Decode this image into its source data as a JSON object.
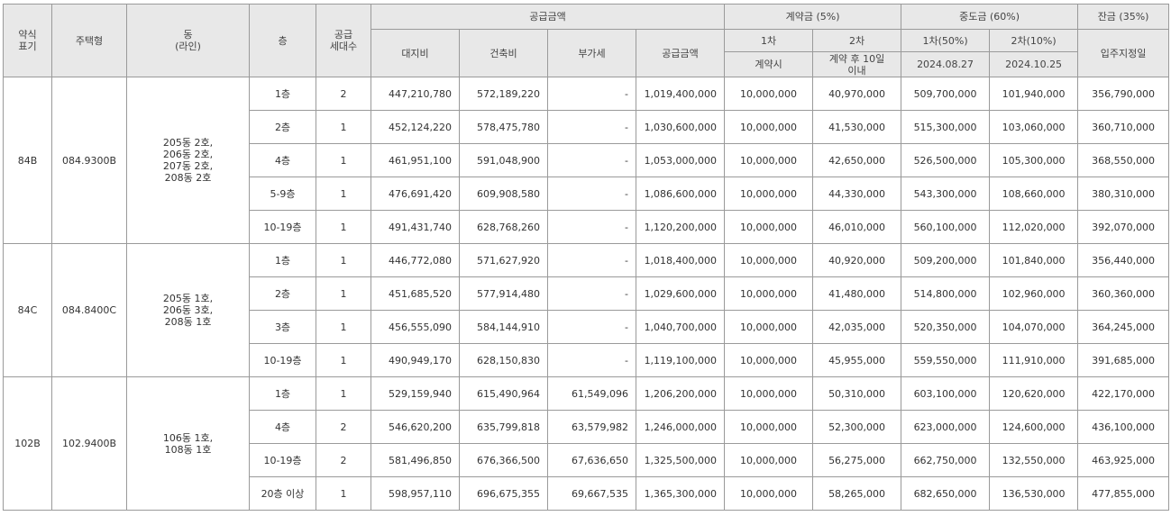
{
  "header": {
    "type_label": "약식\n표기",
    "house_type": "주택형",
    "dong": "동\n(라인)",
    "floor": "층",
    "units": "공급\n세대수",
    "supply_price": "공급금액",
    "land": "대지비",
    "building": "건축비",
    "vat": "부가세",
    "supply_total": "공급금액",
    "deposit": "계약금 (5%)",
    "deposit_1": "1차",
    "deposit_2": "2차",
    "deposit_1_when": "계약시",
    "deposit_2_when": "계약 후 10일\n이내",
    "middle": "중도금 (60%)",
    "middle_1": "1차(50%)",
    "middle_2": "2차(10%)",
    "middle_1_date": "2024.08.27",
    "middle_2_date": "2024.10.25",
    "balance": "잔금 (35%)",
    "balance_when": "입주지정일"
  },
  "groups": [
    {
      "code": "84B",
      "house_type": "084.9300B",
      "dong": "205동 2호,\n206동 2호,\n207동 2호,\n208동 2호",
      "rows": [
        {
          "floor": "1층",
          "units": "2",
          "land": "447,210,780",
          "building": "572,189,220",
          "vat": "-",
          "total": "1,019,400,000",
          "dep1": "10,000,000",
          "dep2": "40,970,000",
          "mid1": "509,700,000",
          "mid2": "101,940,000",
          "bal": "356,790,000"
        },
        {
          "floor": "2층",
          "units": "1",
          "land": "452,124,220",
          "building": "578,475,780",
          "vat": "-",
          "total": "1,030,600,000",
          "dep1": "10,000,000",
          "dep2": "41,530,000",
          "mid1": "515,300,000",
          "mid2": "103,060,000",
          "bal": "360,710,000"
        },
        {
          "floor": "4층",
          "units": "1",
          "land": "461,951,100",
          "building": "591,048,900",
          "vat": "-",
          "total": "1,053,000,000",
          "dep1": "10,000,000",
          "dep2": "42,650,000",
          "mid1": "526,500,000",
          "mid2": "105,300,000",
          "bal": "368,550,000"
        },
        {
          "floor": "5-9층",
          "units": "1",
          "land": "476,691,420",
          "building": "609,908,580",
          "vat": "-",
          "total": "1,086,600,000",
          "dep1": "10,000,000",
          "dep2": "44,330,000",
          "mid1": "543,300,000",
          "mid2": "108,660,000",
          "bal": "380,310,000"
        },
        {
          "floor": "10-19층",
          "units": "1",
          "land": "491,431,740",
          "building": "628,768,260",
          "vat": "-",
          "total": "1,120,200,000",
          "dep1": "10,000,000",
          "dep2": "46,010,000",
          "mid1": "560,100,000",
          "mid2": "112,020,000",
          "bal": "392,070,000"
        }
      ]
    },
    {
      "code": "84C",
      "house_type": "084.8400C",
      "dong": "205동 1호,\n206동 3호,\n208동 1호",
      "rows": [
        {
          "floor": "1층",
          "units": "1",
          "land": "446,772,080",
          "building": "571,627,920",
          "vat": "-",
          "total": "1,018,400,000",
          "dep1": "10,000,000",
          "dep2": "40,920,000",
          "mid1": "509,200,000",
          "mid2": "101,840,000",
          "bal": "356,440,000"
        },
        {
          "floor": "2층",
          "units": "1",
          "land": "451,685,520",
          "building": "577,914,480",
          "vat": "-",
          "total": "1,029,600,000",
          "dep1": "10,000,000",
          "dep2": "41,480,000",
          "mid1": "514,800,000",
          "mid2": "102,960,000",
          "bal": "360,360,000"
        },
        {
          "floor": "3층",
          "units": "1",
          "land": "456,555,090",
          "building": "584,144,910",
          "vat": "-",
          "total": "1,040,700,000",
          "dep1": "10,000,000",
          "dep2": "42,035,000",
          "mid1": "520,350,000",
          "mid2": "104,070,000",
          "bal": "364,245,000"
        },
        {
          "floor": "10-19층",
          "units": "1",
          "land": "490,949,170",
          "building": "628,150,830",
          "vat": "-",
          "total": "1,119,100,000",
          "dep1": "10,000,000",
          "dep2": "45,955,000",
          "mid1": "559,550,000",
          "mid2": "111,910,000",
          "bal": "391,685,000"
        }
      ]
    },
    {
      "code": "102B",
      "house_type": "102.9400B",
      "dong": "106동 1호,\n108동 1호",
      "rows": [
        {
          "floor": "1층",
          "units": "1",
          "land": "529,159,940",
          "building": "615,490,964",
          "vat": "61,549,096",
          "total": "1,206,200,000",
          "dep1": "10,000,000",
          "dep2": "50,310,000",
          "mid1": "603,100,000",
          "mid2": "120,620,000",
          "bal": "422,170,000"
        },
        {
          "floor": "4층",
          "units": "2",
          "land": "546,620,200",
          "building": "635,799,818",
          "vat": "63,579,982",
          "total": "1,246,000,000",
          "dep1": "10,000,000",
          "dep2": "52,300,000",
          "mid1": "623,000,000",
          "mid2": "124,600,000",
          "bal": "436,100,000"
        },
        {
          "floor": "10-19층",
          "units": "2",
          "land": "581,496,850",
          "building": "676,366,500",
          "vat": "67,636,650",
          "total": "1,325,500,000",
          "dep1": "10,000,000",
          "dep2": "56,275,000",
          "mid1": "662,750,000",
          "mid2": "132,550,000",
          "bal": "463,925,000"
        },
        {
          "floor": "20층 이상",
          "units": "1",
          "land": "598,957,110",
          "building": "696,675,355",
          "vat": "69,667,535",
          "total": "1,365,300,000",
          "dep1": "10,000,000",
          "dep2": "58,265,000",
          "mid1": "682,650,000",
          "mid2": "136,530,000",
          "bal": "477,855,000"
        }
      ]
    }
  ]
}
